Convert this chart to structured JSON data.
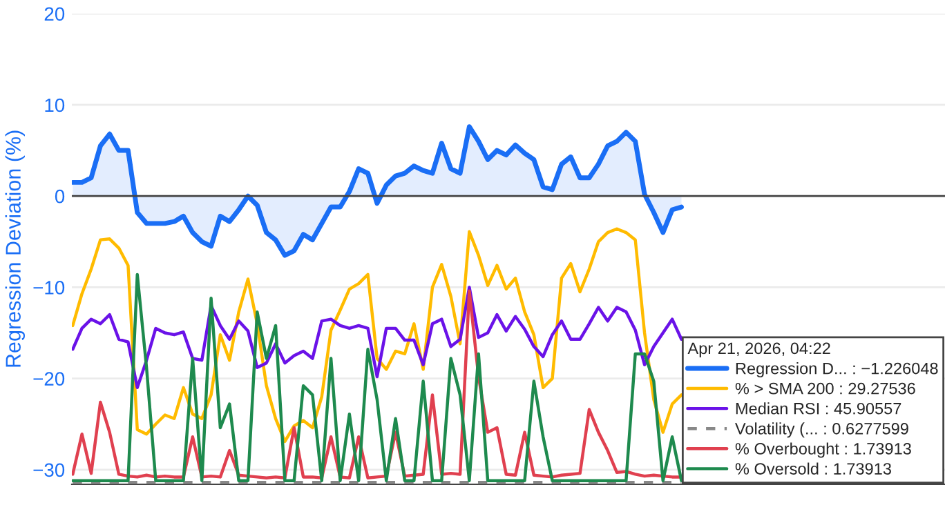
{
  "chart_data": {
    "type": "line",
    "ylabel": "Regression Deviation (%)",
    "categories": [
      null,
      null,
      null,
      null,
      null,
      null,
      null,
      null,
      null,
      null,
      null,
      null,
      null,
      null,
      null,
      null,
      null,
      null,
      null,
      null,
      null,
      null,
      null,
      null,
      null,
      null,
      null,
      null,
      null,
      null,
      null,
      null,
      null,
      null,
      null,
      null,
      null,
      null,
      null,
      null,
      null,
      null,
      null,
      null,
      null,
      null,
      null,
      null,
      null,
      null,
      null,
      null,
      null,
      null,
      null,
      null,
      null,
      null,
      null,
      null,
      null,
      null,
      null,
      null,
      null,
      null,
      null
    ],
    "ylim": [
      -31.6,
      20
    ],
    "yticks": [
      20,
      10,
      0,
      {
        "value": -10,
        "label": "−10"
      },
      {
        "value": -20,
        "label": "−20"
      },
      {
        "value": -30,
        "label": "−30"
      }
    ],
    "grid": "y",
    "legend": "bottom right",
    "legend_title": "Apr 21, 2026, 04:22",
    "ref_lines": [
      {
        "axis": "y",
        "value": 0,
        "color": "#444444",
        "line_style": "solid"
      }
    ],
    "series": [
      {
        "name": "Regression D... : −1.226048",
        "type": "area",
        "color": "#1a6ef5",
        "values": [
          1.5,
          1.5,
          2,
          5.5,
          6.8,
          5,
          5,
          -1.8,
          -3,
          -3,
          -3,
          -2.8,
          -2.2,
          -4,
          -5,
          -5.5,
          -2.2,
          -2.8,
          -1.5,
          0,
          -1,
          -4,
          -4.8,
          -6.5,
          -6,
          -4.2,
          -4.8,
          -3,
          -1.2,
          -1.2,
          0.5,
          3,
          2.5,
          -0.8,
          1.2,
          2.2,
          2.5,
          3.3,
          2.8,
          2.5,
          5.8,
          3,
          2.5,
          7.6,
          6,
          4,
          5,
          4.5,
          5.6,
          4.7,
          4,
          1,
          0.7,
          3.5,
          4.3,
          2,
          2,
          3.5,
          5.5,
          6,
          7,
          6,
          0.2,
          -1.8,
          -4,
          -1.5,
          -1.2
        ]
      },
      {
        "name": "% > SMA 200 : 29.27536",
        "color": "#ffbb00",
        "values": [
          -14.2,
          -10.7,
          -8,
          -4.8,
          -4.7,
          -5.7,
          -7.6,
          -25.6,
          -26.1,
          -25,
          -24,
          -24.4,
          -21,
          -23.9,
          -24.4,
          -21.8,
          -15.2,
          -18,
          -12.7,
          -9.1,
          -14,
          -20.8,
          -24.4,
          -26.9,
          -25.2,
          -24.6,
          -25.4,
          -22,
          -14.7,
          -12.5,
          -10.2,
          -9.6,
          -8.6,
          -17.8,
          -19,
          -17,
          -17.3,
          -14,
          -19,
          -10,
          -7.5,
          -11,
          -16.2,
          -3.9,
          -6.5,
          -9.8,
          -7.6,
          -10.2,
          -9,
          -12.7,
          -15.2,
          -21,
          -20,
          -9,
          -7.4,
          -10.5,
          -8,
          -5,
          -4,
          -3.6,
          -4,
          -4.8,
          -15,
          -22.3,
          -25.9,
          -22.8,
          -21.8
        ]
      },
      {
        "name": "Median RSI : 45.90557",
        "color": "#6a12e8",
        "values": [
          -16.8,
          -14.5,
          -13.5,
          -14,
          -13,
          -15.7,
          -16,
          -21,
          -18,
          -14.5,
          -15,
          -15.2,
          -14.9,
          -17.8,
          -18,
          -12,
          -14.2,
          -15.7,
          -13.7,
          -14.8,
          -18.8,
          -18.3,
          -16.2,
          -18.3,
          -17.5,
          -17,
          -17.8,
          -13.7,
          -13.5,
          -14.2,
          -14.5,
          -14.2,
          -14.5,
          -19.8,
          -14.5,
          -14.5,
          -15.8,
          -15.8,
          -18.5,
          -14,
          -13.5,
          -16.5,
          -15.7,
          -10,
          -15.5,
          -15,
          -13,
          -14.8,
          -13.2,
          -14.6,
          -16.5,
          -17.6,
          -15.2,
          -13.7,
          -15.7,
          -15.7,
          -14,
          -12.2,
          -13.7,
          -12.2,
          -12.7,
          -14.7,
          -18.5,
          -16.5,
          -15,
          -13.5,
          -15.7
        ]
      },
      {
        "name": "Volatility (... : 0.6277599",
        "line_style": "dashed",
        "color": "#888888",
        "values": [
          -31.4,
          -31.4,
          -31.4,
          -31.4,
          -31.4,
          -31.4,
          -31.4,
          -31.4,
          -31.4,
          -31.4,
          -31.4,
          -31.4,
          -31.4,
          -31.4,
          -31.4,
          -31.4,
          -31.4,
          -31.4,
          -31.4,
          -31.4,
          -31.4,
          -31.4,
          -31.4,
          -31.4,
          -31.4,
          -31.4,
          -31.4,
          -31.4,
          -31.4,
          -31.4,
          -31.4,
          -31.4,
          -31.4,
          -31.4,
          -31.4,
          -31.4,
          -31.4,
          -31.4,
          -31.4,
          -31.4,
          -31.4,
          -31.4,
          -31.4,
          -31.4,
          -31.4,
          -31.4,
          -31.4,
          -31.4,
          -31.4,
          -31.4,
          -31.4,
          -31.4,
          -31.4,
          -31.4,
          -31.4,
          -31.4,
          -31.4,
          -31.4,
          -31.4,
          -31.4,
          -31.4,
          -31.4,
          -31.4,
          -31.4,
          -31.4,
          -31.4,
          -31.4
        ]
      },
      {
        "name": "% Overbought : 1.73913",
        "color": "#e0404f",
        "values": [
          -30.5,
          -26.1,
          -30.4,
          -22.6,
          -25.9,
          -30.5,
          -30.7,
          -30.8,
          -30.6,
          -30.8,
          -30.7,
          -30.8,
          -30.8,
          -26.4,
          -30.8,
          -30.7,
          -30.8,
          -27.9,
          -30.6,
          -30.7,
          -30.8,
          -30.9,
          -30.8,
          -30.9,
          -25.4,
          -30.8,
          -30.8,
          -30.9,
          -26.4,
          -30.8,
          -30.9,
          -26.4,
          -30.9,
          -30.8,
          -30.7,
          -25.9,
          -30.7,
          -30.6,
          -30.5,
          -21.8,
          -30.5,
          -30.4,
          -30.5,
          -10.4,
          -19.8,
          -25.9,
          -25.4,
          -30.5,
          -30.6,
          -25.9,
          -30.6,
          -30.7,
          -30.8,
          -30.6,
          -30.5,
          -30.4,
          -23.4,
          -25.9,
          -27.9,
          -30.3,
          -30.2,
          -30.5,
          -30.7,
          -30.6,
          -30.7,
          -30.8,
          -30.8
        ]
      },
      {
        "name": "% Oversold : 1.73913",
        "color": "#1e8a4e",
        "values": [
          -31.2,
          -31.2,
          -31.2,
          -31.2,
          -31.2,
          -31.2,
          -31.2,
          -8.6,
          -18.8,
          -31.2,
          -31.2,
          -31.2,
          -31.2,
          -17.8,
          -31.2,
          -11.2,
          -25.4,
          -22.8,
          -31.2,
          -31.2,
          -12.7,
          -17.8,
          -14.2,
          -31.2,
          -31.2,
          -20.8,
          -21.8,
          -31.2,
          -17.8,
          -31.2,
          -23.9,
          -31.2,
          -16.8,
          -22.3,
          -31.2,
          -24.4,
          -31.2,
          -31.2,
          -20.3,
          -31.2,
          -31.2,
          -17.8,
          -21.8,
          -31.2,
          -17.3,
          -31.2,
          -31.2,
          -31.2,
          -31.2,
          -31.2,
          -20.3,
          -26.4,
          -31.2,
          -31.2,
          -31.2,
          -31.2,
          -31.2,
          -31.2,
          -31.2,
          -31.2,
          -31.2,
          -17.3,
          -17.3,
          -20.3,
          -31.2,
          -26.4,
          -31.2
        ]
      }
    ]
  }
}
